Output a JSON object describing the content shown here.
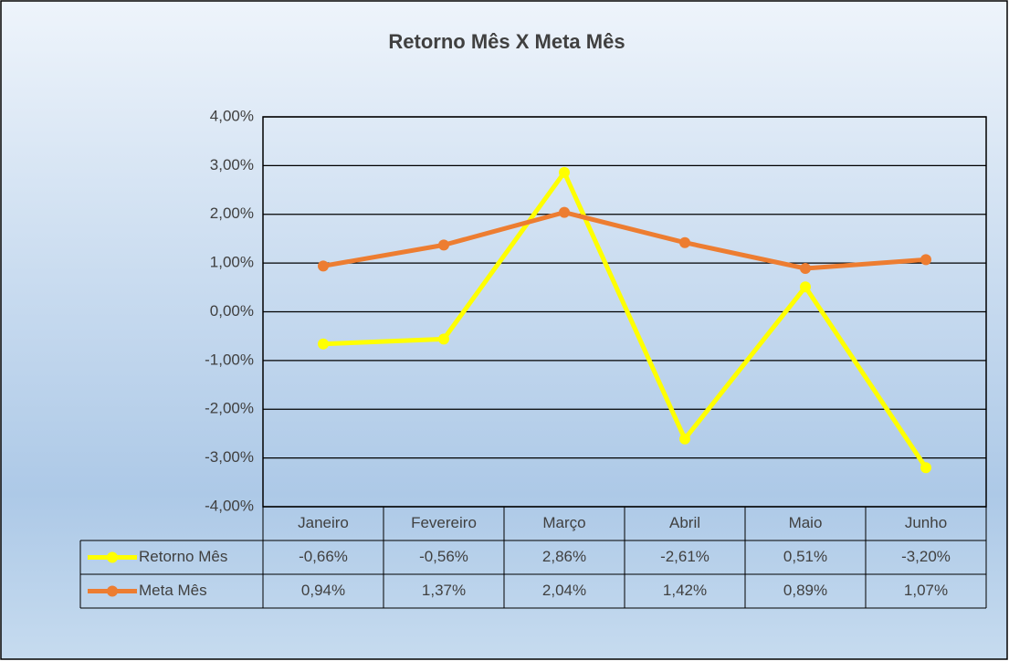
{
  "chart_data": {
    "type": "line",
    "title": "Retorno Mês X Meta Mês",
    "categories": [
      "Janeiro",
      "Fevereiro",
      "Março",
      "Abril",
      "Maio",
      "Junho"
    ],
    "series": [
      {
        "name": "Retorno Mês",
        "color": "#ffff00",
        "values": [
          -0.66,
          -0.56,
          2.86,
          -2.61,
          0.51,
          -3.2
        ],
        "value_labels": [
          "-0,66%",
          "-0,56%",
          "2,86%",
          "-2,61%",
          "0,51%",
          "-3,20%"
        ]
      },
      {
        "name": "Meta Mês",
        "color": "#ed7d31",
        "values": [
          0.94,
          1.37,
          2.04,
          1.42,
          0.89,
          1.07
        ],
        "value_labels": [
          "0,94%",
          "1,37%",
          "2,04%",
          "1,42%",
          "0,89%",
          "1,07%"
        ]
      }
    ],
    "ylim": [
      -4,
      4
    ],
    "yticks": [
      {
        "value": -4,
        "label": "-4,00%"
      },
      {
        "value": -3,
        "label": "-3,00%"
      },
      {
        "value": -2,
        "label": "-2,00%"
      },
      {
        "value": -1,
        "label": "-1,00%"
      },
      {
        "value": 0,
        "label": "0,00%"
      },
      {
        "value": 1,
        "label": "1,00%"
      },
      {
        "value": 2,
        "label": "2,00%"
      },
      {
        "value": 3,
        "label": "3,00%"
      },
      {
        "value": 4,
        "label": "4,00%"
      }
    ],
    "grid": true
  }
}
